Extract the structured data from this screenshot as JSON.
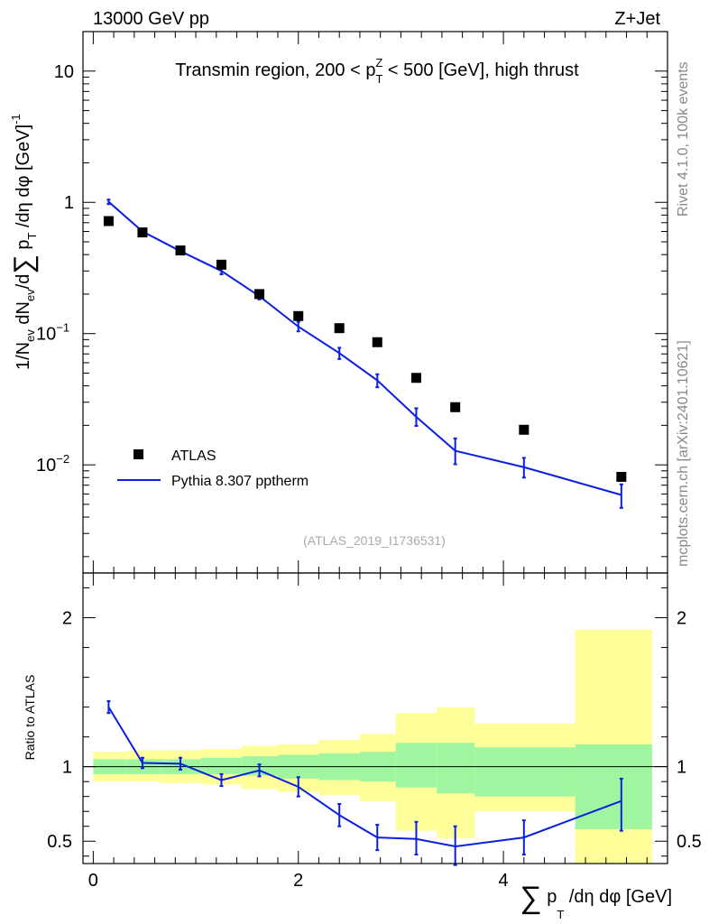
{
  "header": {
    "left": "13000 GeV pp",
    "right": "Z+Jet"
  },
  "side_labels": {
    "rivet": "Rivet 4.1.0,  100k events",
    "mcplots": "mcplots.cern.ch [arXiv:2401.10621]"
  },
  "chart_data": [
    {
      "type": "scatter",
      "panel": "main",
      "title": "Transmin region, 200 < p_T^Z < 500 [GeV], high thrust",
      "title_parts": {
        "pre": "Transmin region, 200 < p",
        "sub": "T",
        "sup": "Z",
        "post": " < 500 [GeV], high thrust"
      },
      "ylabel": "1/N_ev dN_ev/d Σ p_T /dη dφ [GeV]^-1",
      "ylabel_parts": {
        "a": "1/N",
        "a_sub": "ev",
        "b": " dN",
        "b_sub": "ev",
        "c": "/d",
        "sigma": "∑",
        "d": " p",
        "d_sub": "T",
        "e": " /dη dφ  [GeV]",
        "e_sup": "-1"
      },
      "yscale": "log",
      "ylim": [
        0.0015,
        20
      ],
      "xlim": [
        -0.1,
        5.6
      ],
      "y_ticks": [
        {
          "value": 10,
          "label": "10",
          "exp": ""
        },
        {
          "value": 1,
          "label": "1",
          "exp": ""
        },
        {
          "value": 0.1,
          "label": "10",
          "exp": "−1"
        },
        {
          "value": 0.01,
          "label": "10",
          "exp": "−2"
        }
      ],
      "reference": "(ATLAS_2019_I1736531)",
      "legend": {
        "position": "lower-left",
        "entries": [
          "ATLAS",
          "Pythia 8.307 pptherm"
        ]
      },
      "series": [
        {
          "name": "ATLAS",
          "style": "marker",
          "color": "#000000",
          "x": [
            0.15,
            0.48,
            0.85,
            1.25,
            1.62,
            2.0,
            2.4,
            2.77,
            3.15,
            3.53,
            4.2,
            5.15
          ],
          "y": [
            0.72,
            0.59,
            0.43,
            0.335,
            0.2,
            0.136,
            0.11,
            0.086,
            0.046,
            0.0275,
            0.0185,
            0.0081
          ]
        },
        {
          "name": "Pythia 8.307 pptherm",
          "style": "line",
          "color": "#0b1fe0",
          "x": [
            0.15,
            0.48,
            0.85,
            1.25,
            1.62,
            2.0,
            2.4,
            2.77,
            3.15,
            3.53,
            4.2,
            5.15
          ],
          "y": [
            1.01,
            0.6,
            0.425,
            0.3,
            0.193,
            0.113,
            0.071,
            0.044,
            0.0232,
            0.0128,
            0.0096,
            0.0059
          ],
          "err_lo": [
            0.97,
            0.575,
            0.408,
            0.283,
            0.182,
            0.104,
            0.064,
            0.039,
            0.0198,
            0.0101,
            0.008,
            0.0047
          ],
          "err_hi": [
            1.05,
            0.625,
            0.442,
            0.317,
            0.204,
            0.123,
            0.078,
            0.049,
            0.027,
            0.0159,
            0.0113,
            0.0071
          ]
        }
      ]
    },
    {
      "type": "line",
      "panel": "ratio",
      "ylabel": "Ratio to ATLAS",
      "xlabel": "Σ p_T /dη dφ [GeV]",
      "xlabel_parts": {
        "sigma": "∑",
        "a": " p",
        "a_sub": "T",
        "b": " /dη dφ [GeV]"
      },
      "ylim": [
        0.35,
        2.3
      ],
      "xlim": [
        -0.1,
        5.6
      ],
      "x_ticks": [
        {
          "value": 0,
          "label": "0"
        },
        {
          "value": 2,
          "label": "2"
        },
        {
          "value": 4,
          "label": "4"
        }
      ],
      "y_ticks": [
        {
          "value": 2,
          "label": "2"
        },
        {
          "value": 1,
          "label": "1"
        },
        {
          "value": 0.5,
          "label": "0.5"
        }
      ],
      "bands": {
        "edges": [
          0.0,
          0.33,
          0.65,
          1.05,
          1.45,
          1.8,
          2.2,
          2.6,
          2.95,
          3.35,
          3.72,
          4.7,
          5.45
        ],
        "inner_lo": [
          0.95,
          0.95,
          0.95,
          0.95,
          0.94,
          0.92,
          0.91,
          0.9,
          0.86,
          0.82,
          0.8,
          0.58
        ],
        "inner_hi": [
          1.05,
          1.05,
          1.05,
          1.06,
          1.07,
          1.08,
          1.09,
          1.1,
          1.16,
          1.16,
          1.13,
          1.15
        ],
        "outer_lo": [
          0.9,
          0.9,
          0.89,
          0.88,
          0.85,
          0.83,
          0.81,
          0.77,
          0.57,
          0.52,
          0.7,
          0.3
        ],
        "outer_hi": [
          1.1,
          1.11,
          1.11,
          1.12,
          1.14,
          1.15,
          1.18,
          1.22,
          1.36,
          1.4,
          1.29,
          1.92
        ],
        "inner_color": "#a0f5a0",
        "outer_color": "#ffff99"
      },
      "series": [
        {
          "name": "Pythia 8.307 pptherm / ATLAS",
          "color": "#0b1fe0",
          "x": [
            0.15,
            0.48,
            0.85,
            1.25,
            1.62,
            2.0,
            2.4,
            2.77,
            3.15,
            3.53,
            4.2,
            5.15
          ],
          "y": [
            1.4,
            1.025,
            1.02,
            0.91,
            0.975,
            0.865,
            0.675,
            0.525,
            0.515,
            0.465,
            0.525,
            0.77
          ],
          "err_lo": [
            1.36,
            0.99,
            0.98,
            0.87,
            0.935,
            0.8,
            0.6,
            0.44,
            0.41,
            0.34,
            0.41,
            0.57
          ],
          "err_hi": [
            1.44,
            1.06,
            1.06,
            0.95,
            1.015,
            0.93,
            0.75,
            0.61,
            0.63,
            0.6,
            0.64,
            0.92
          ]
        }
      ]
    }
  ]
}
